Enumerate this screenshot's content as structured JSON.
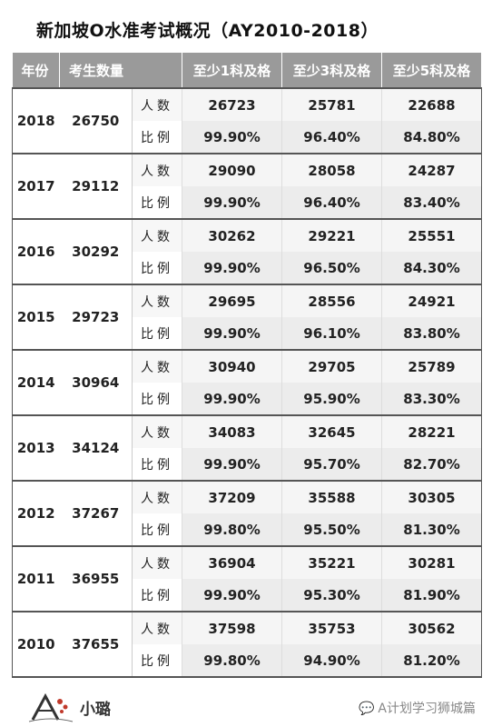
{
  "title": "新加坡O水准考试概况（AY2010-2018）",
  "headers": {
    "year": "年份",
    "candidates": "考生数量",
    "pass1": "至少1科及格",
    "pass3": "至少3科及格",
    "pass5": "至少5科及格"
  },
  "labels": {
    "count": "人数",
    "ratio": "比例"
  },
  "rows": [
    {
      "year": "2018",
      "total": "26750",
      "count": [
        "26723",
        "25781",
        "22688"
      ],
      "ratio": [
        "99.90%",
        "96.40%",
        "84.80%"
      ]
    },
    {
      "year": "2017",
      "total": "29112",
      "count": [
        "29090",
        "28058",
        "24287"
      ],
      "ratio": [
        "99.90%",
        "96.40%",
        "83.40%"
      ]
    },
    {
      "year": "2016",
      "total": "30292",
      "count": [
        "30262",
        "29221",
        "25551"
      ],
      "ratio": [
        "99.90%",
        "96.50%",
        "84.30%"
      ]
    },
    {
      "year": "2015",
      "total": "29723",
      "count": [
        "29695",
        "28556",
        "24921"
      ],
      "ratio": [
        "99.90%",
        "96.10%",
        "83.80%"
      ]
    },
    {
      "year": "2014",
      "total": "30964",
      "count": [
        "30940",
        "29705",
        "25789"
      ],
      "ratio": [
        "99.90%",
        "95.90%",
        "83.30%"
      ]
    },
    {
      "year": "2013",
      "total": "34124",
      "count": [
        "34083",
        "32645",
        "28221"
      ],
      "ratio": [
        "99.90%",
        "95.70%",
        "82.70%"
      ]
    },
    {
      "year": "2012",
      "total": "37267",
      "count": [
        "37209",
        "35588",
        "30305"
      ],
      "ratio": [
        "99.80%",
        "95.50%",
        "81.30%"
      ]
    },
    {
      "year": "2011",
      "total": "36955",
      "count": [
        "36904",
        "35221",
        "30281"
      ],
      "ratio": [
        "99.90%",
        "95.30%",
        "81.90%"
      ]
    },
    {
      "year": "2010",
      "total": "37655",
      "count": [
        "37598",
        "35753",
        "30562"
      ],
      "ratio": [
        "99.80%",
        "94.90%",
        "81.20%"
      ]
    }
  ],
  "footer": {
    "logo_text": "小璐",
    "watermark": "A计划学习狮城篇"
  }
}
